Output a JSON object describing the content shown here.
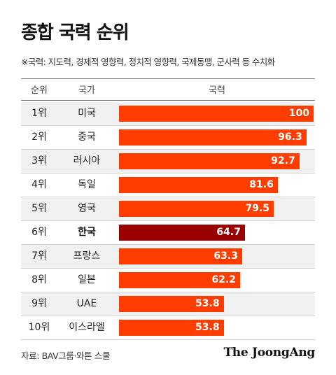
{
  "title": "종합 국력 순위",
  "subtitle": "※국력: 지도력, 경제적 영향력, 정치적 영향력, 국제동맹, 군사력 등 수치화",
  "headers": {
    "rank": "순위",
    "country": "국가",
    "power": "국력"
  },
  "highlight_country": "한국",
  "colors": {
    "bar": "#ff3d00",
    "highlight_bar": "#990000"
  },
  "chart_data": {
    "type": "bar",
    "orientation": "horizontal",
    "title": "종합 국력 순위",
    "xlim": [
      0,
      100
    ],
    "ranks": [
      "1위",
      "2위",
      "3위",
      "4위",
      "5위",
      "6위",
      "7위",
      "8위",
      "9위",
      "10위"
    ],
    "categories": [
      "미국",
      "중국",
      "러시아",
      "독일",
      "영국",
      "한국",
      "프랑스",
      "일본",
      "UAE",
      "이스라엘"
    ],
    "values": [
      100,
      96.3,
      92.7,
      81.6,
      79.5,
      64.7,
      63.3,
      62.2,
      53.8,
      53.8
    ],
    "value_labels": [
      "100",
      "96.3",
      "92.7",
      "81.6",
      "79.5",
      "64.7",
      "63.3",
      "62.2",
      "53.8",
      "53.8"
    ]
  },
  "footer": {
    "source": "자료: BAV그룹·와튼 스쿨",
    "logo": "The JoongAng"
  }
}
